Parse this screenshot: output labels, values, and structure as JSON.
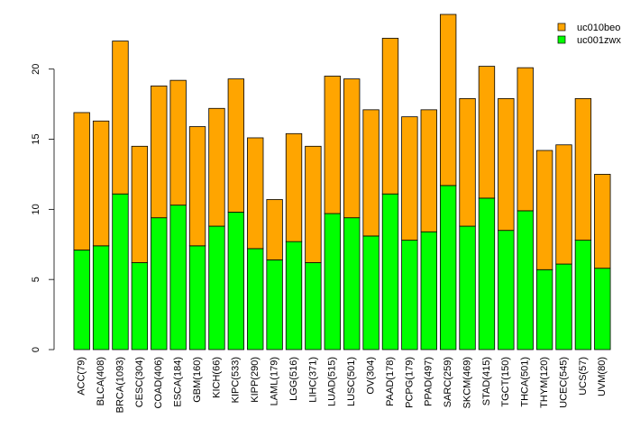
{
  "chart_data": {
    "type": "bar",
    "stacked": true,
    "title": "",
    "xlabel": "",
    "ylabel": "",
    "ylim": [
      0,
      24
    ],
    "y_ticks": [
      0,
      5,
      10,
      15,
      20
    ],
    "grid": false,
    "legend_position": "top-right",
    "categories": [
      "ACC(79)",
      "BLCA(408)",
      "BRCA(1093)",
      "CESC(304)",
      "COAD(406)",
      "ESCA(184)",
      "GBM(160)",
      "KICH(66)",
      "KIPC(533)",
      "KIPP(290)",
      "LAML(179)",
      "LGG(516)",
      "LIHC(371)",
      "LUAD(515)",
      "LUSC(501)",
      "OV(304)",
      "PAAD(178)",
      "PCPG(179)",
      "PPAD(497)",
      "SARC(259)",
      "SKCM(469)",
      "STAD(415)",
      "TGCT(150)",
      "THCA(501)",
      "THYM(120)",
      "UCEC(545)",
      "UCS(57)",
      "UVM(80)"
    ],
    "series": [
      {
        "name": "uc001zwx",
        "color": "#00ff00",
        "values": [
          7.1,
          7.4,
          11.1,
          6.2,
          9.4,
          10.3,
          7.4,
          8.8,
          9.8,
          7.2,
          6.4,
          7.7,
          6.2,
          9.7,
          9.4,
          8.1,
          11.1,
          7.8,
          8.4,
          11.7,
          8.8,
          10.8,
          8.5,
          9.9,
          5.7,
          6.1,
          7.8,
          5.8
        ]
      },
      {
        "name": "uc010beo",
        "color": "#ffa500",
        "values": [
          9.8,
          8.9,
          10.9,
          8.3,
          9.4,
          8.9,
          8.5,
          8.4,
          9.5,
          7.9,
          4.3,
          7.7,
          8.3,
          9.8,
          9.9,
          9.0,
          11.1,
          8.8,
          8.7,
          12.2,
          9.1,
          9.4,
          9.4,
          10.2,
          8.5,
          8.5,
          10.1,
          6.7
        ]
      }
    ]
  },
  "legend": {
    "entries": [
      {
        "label": "uc010beo",
        "color": "#ffa500"
      },
      {
        "label": "uc001zwx",
        "color": "#00ff00"
      }
    ]
  }
}
